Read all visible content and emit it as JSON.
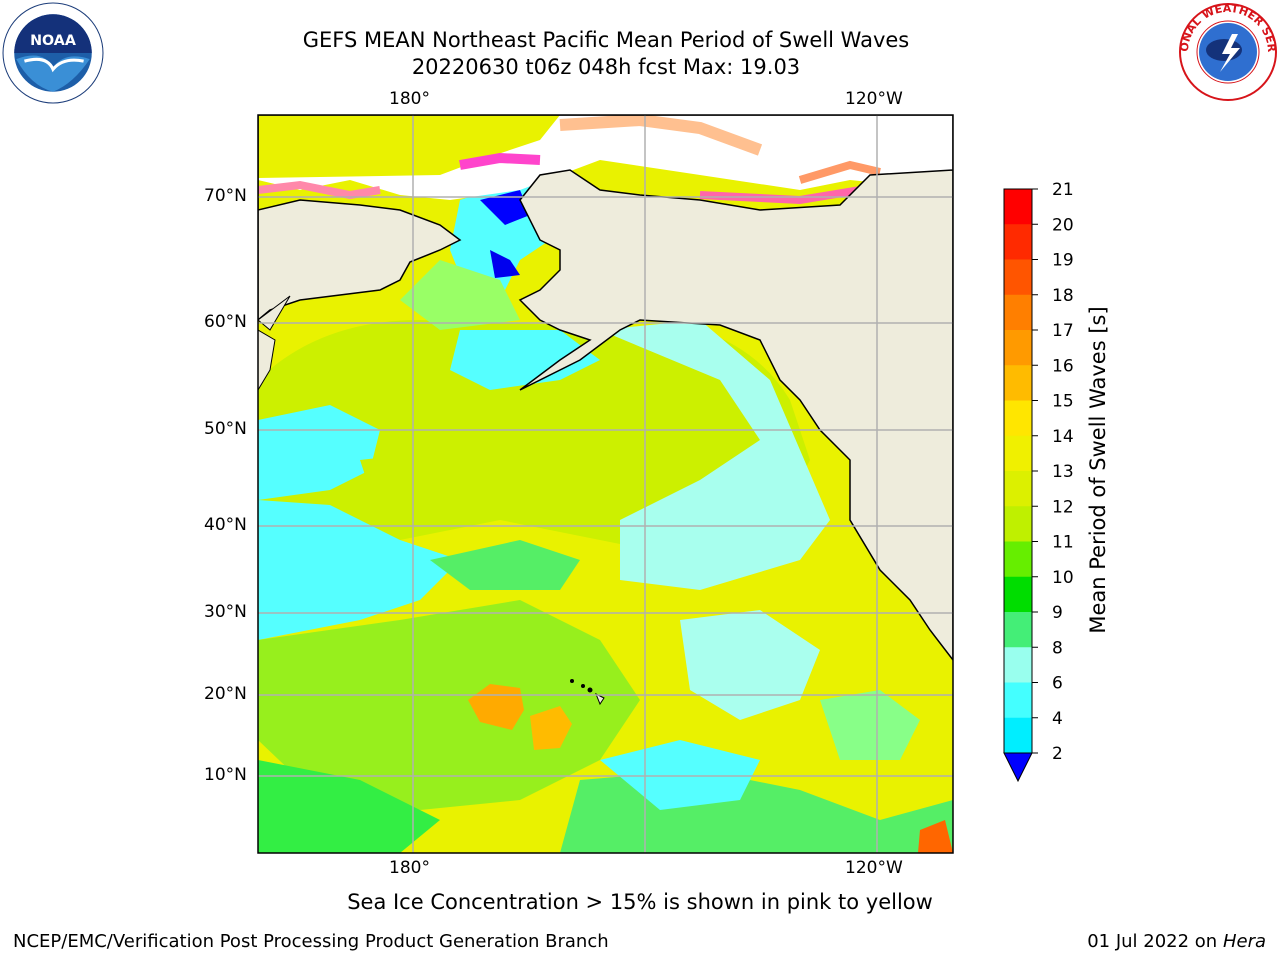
{
  "title_line1": "GEFS MEAN Northeast Pacific Mean Period of Swell Waves",
  "title_line2": "20220630 t06z 048h fcst   Max: 19.03",
  "logos": {
    "left": "noaa-logo",
    "right": "nws-logo"
  },
  "noaa_logo_text": "NOAA",
  "nws_logo_text": "NATIONAL WEATHER SERVICE",
  "map": {
    "lon_labels_top": [
      "180°",
      "120°W"
    ],
    "lon_labels_bottom": [
      "180°",
      "120°W"
    ],
    "lat_labels": [
      "70°N",
      "60°N",
      "50°N",
      "40°N",
      "30°N",
      "20°N",
      "10°N"
    ],
    "land_color": "#eeecdc",
    "grid_color": "#b0b0b0"
  },
  "colorbar": {
    "label": "Mean Period of Swell Waves [s]",
    "ticks": [
      "21",
      "20",
      "19",
      "18",
      "17",
      "16",
      "15",
      "14",
      "13",
      "12",
      "11",
      "10",
      "9",
      "8",
      "6",
      "4",
      "2"
    ],
    "colors_top_to_bottom": [
      "#ff0000",
      "#ff2a00",
      "#ff5500",
      "#ff7f00",
      "#ff9a00",
      "#ffbb00",
      "#ffe600",
      "#f0f000",
      "#dcf000",
      "#bff000",
      "#66ee00",
      "#00dd00",
      "#44ee77",
      "#99ffee",
      "#44ffff",
      "#00eeff",
      "#00ccff",
      "#0066ff"
    ],
    "under_color": "#0000ff"
  },
  "ice_note": "Sea Ice Concentration > 15% is shown in pink to yellow",
  "footer_left": "NCEP/EMC/Verification Post Processing Product Generation Branch",
  "footer_right_prefix": "01 Jul 2022 on ",
  "footer_right_host": "Hera"
}
